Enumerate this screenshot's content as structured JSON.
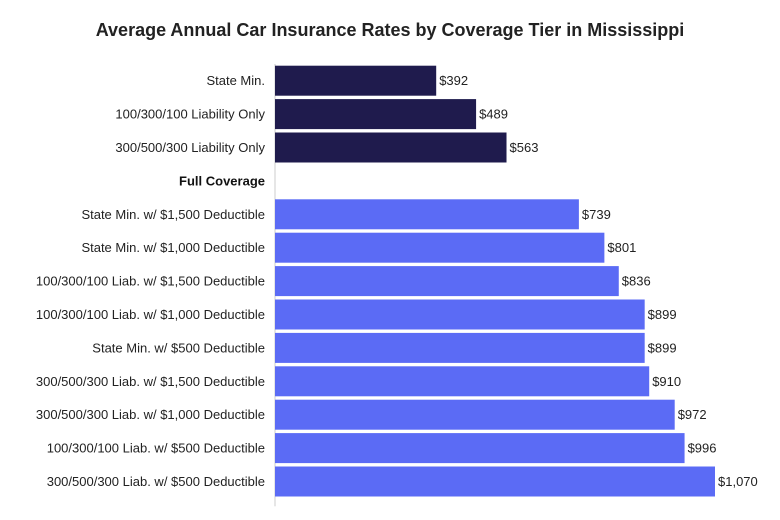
{
  "chart_data": {
    "type": "bar",
    "orientation": "horizontal",
    "title": "Average Annual Car Insurance Rates by Coverage Tier in Mississippi",
    "xlabel": "",
    "ylabel": "",
    "xlim": [
      0,
      1070
    ],
    "grid": false,
    "rows": [
      {
        "kind": "bar",
        "label": "State Min.",
        "value": 392,
        "value_label": "$392",
        "group": "liability"
      },
      {
        "kind": "bar",
        "label": "100/300/100 Liability Only",
        "value": 489,
        "value_label": "$489",
        "group": "liability"
      },
      {
        "kind": "bar",
        "label": "300/500/300 Liability Only",
        "value": 563,
        "value_label": "$563",
        "group": "liability"
      },
      {
        "kind": "header",
        "label": "Full Coverage"
      },
      {
        "kind": "bar",
        "label": "State Min. w/ $1,500 Deductible",
        "value": 739,
        "value_label": "$739",
        "group": "full"
      },
      {
        "kind": "bar",
        "label": "State Min. w/ $1,000 Deductible",
        "value": 801,
        "value_label": "$801",
        "group": "full"
      },
      {
        "kind": "bar",
        "label": "100/300/100 Liab. w/ $1,500 Deductible",
        "value": 836,
        "value_label": "$836",
        "group": "full"
      },
      {
        "kind": "bar",
        "label": "100/300/100 Liab. w/ $1,000 Deductible",
        "value": 899,
        "value_label": "$899",
        "group": "full"
      },
      {
        "kind": "bar",
        "label": "State Min. w/ $500 Deductible",
        "value": 899,
        "value_label": "$899",
        "group": "full"
      },
      {
        "kind": "bar",
        "label": "300/500/300 Liab. w/ $1,500 Deductible",
        "value": 910,
        "value_label": "$910",
        "group": "full"
      },
      {
        "kind": "bar",
        "label": "300/500/300 Liab. w/ $1,000 Deductible",
        "value": 972,
        "value_label": "$972",
        "group": "full"
      },
      {
        "kind": "bar",
        "label": "100/300/100 Liab. w/ $500 Deductible",
        "value": 996,
        "value_label": "$996",
        "group": "full"
      },
      {
        "kind": "bar",
        "label": "300/500/300 Liab. w/ $500 Deductible",
        "value": 1070,
        "value_label": "$1,070",
        "group": "full"
      }
    ],
    "colors": {
      "liability": "#1f1b4d",
      "full": "#5b6bf5",
      "axis": "#cccccc"
    }
  }
}
